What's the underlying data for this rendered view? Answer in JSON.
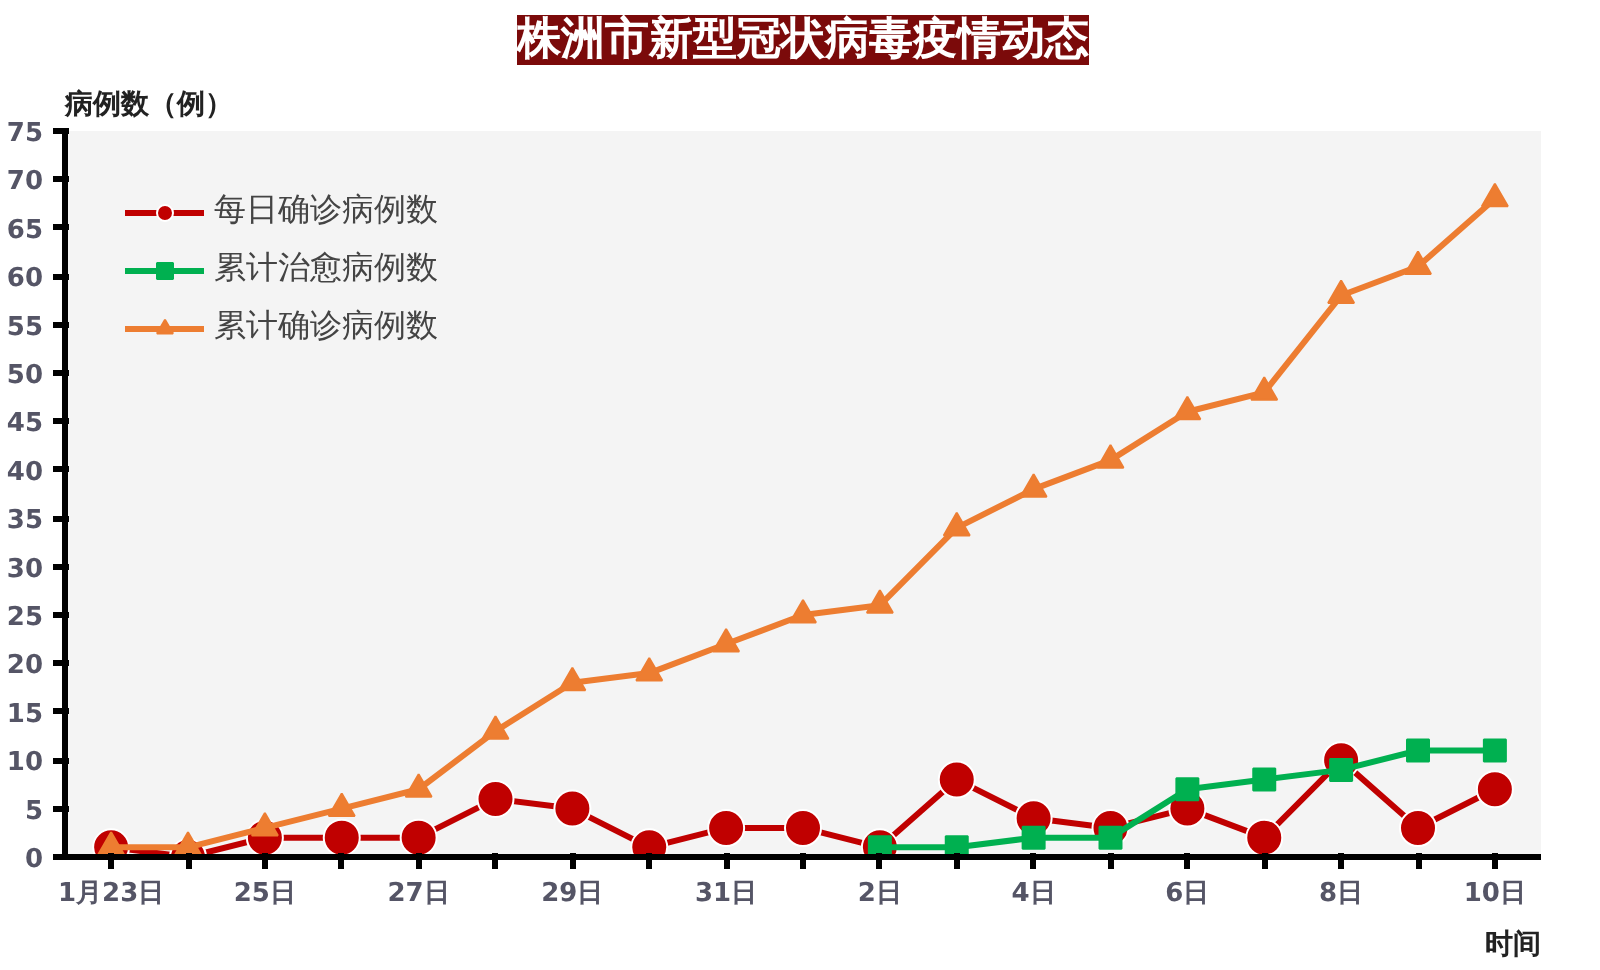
{
  "chart_data": {
    "type": "line",
    "title": "株洲市新型冠状病毒疫情动态",
    "ylabel": "病例数（例）",
    "xlabel": "时间",
    "categories": [
      "1月23日",
      null,
      "25日",
      null,
      "27日",
      null,
      "29日",
      null,
      "31日",
      null,
      "2日",
      null,
      "4日",
      null,
      "6日",
      null,
      "8日",
      null,
      "10日"
    ],
    "series": [
      {
        "name": "每日确诊病例数",
        "color": "#c00000",
        "marker": "circle",
        "values": [
          1,
          0,
          2,
          2,
          2,
          6,
          5,
          1,
          3,
          3,
          1,
          8,
          4,
          3,
          5,
          2,
          10,
          3,
          7
        ]
      },
      {
        "name": "累计治愈病例数",
        "color": "#00b050",
        "marker": "square",
        "values": [
          null,
          null,
          null,
          null,
          null,
          null,
          null,
          null,
          null,
          null,
          1,
          1,
          2,
          2,
          7,
          8,
          9,
          11,
          11
        ]
      },
      {
        "name": "累计确诊病例数",
        "color": "#ed7d31",
        "marker": "triangle",
        "values": [
          1,
          1,
          3,
          5,
          7,
          13,
          18,
          19,
          22,
          25,
          26,
          34,
          38,
          41,
          46,
          48,
          58,
          61,
          68
        ]
      }
    ],
    "ylim": [
      0,
      75
    ],
    "yticks": [
      0,
      5,
      10,
      15,
      20,
      25,
      30,
      35,
      40,
      45,
      50,
      55,
      60,
      65,
      70,
      75
    ],
    "grid": false,
    "legend": "top left",
    "line_style": "solid"
  }
}
